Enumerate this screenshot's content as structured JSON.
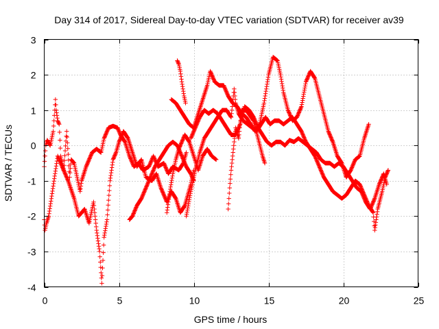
{
  "chart_data": {
    "type": "scatter",
    "title": "Day 314 of 2017, Sidereal Day-to-day VTEC variation (SDTVAR) for receiver av39",
    "xlabel": "GPS time / hours",
    "ylabel": "SDTVAR / TECUs",
    "xlim": [
      0,
      25
    ],
    "ylim": [
      -4,
      3
    ],
    "xticks": [
      "0",
      "5",
      "10",
      "15",
      "20",
      "25"
    ],
    "yticks": [
      "-4",
      "-3",
      "-2",
      "-1",
      "0",
      "1",
      "2",
      "3"
    ],
    "grid": true,
    "marker": "+",
    "color": "#ff0000",
    "series": [
      {
        "name": "track-1",
        "points": [
          [
            0.0,
            -0.6
          ],
          [
            0.1,
            0.0
          ],
          [
            0.2,
            0.15
          ],
          [
            0.4,
            0.0
          ],
          [
            0.6,
            0.4
          ],
          [
            0.75,
            1.3
          ],
          [
            0.8,
            1.0
          ],
          [
            0.9,
            0.7
          ],
          [
            1.0,
            0.6
          ],
          [
            1.1,
            -0.3
          ],
          [
            1.3,
            -0.7
          ],
          [
            1.5,
            0.4
          ],
          [
            1.7,
            -0.9
          ],
          [
            1.8,
            -0.4
          ],
          [
            2.0,
            -0.5
          ],
          [
            2.2,
            -0.9
          ],
          [
            2.4,
            -1.3
          ],
          [
            2.5,
            -1.0
          ],
          [
            2.8,
            -0.6
          ],
          [
            3.0,
            -0.4
          ],
          [
            3.2,
            -0.2
          ],
          [
            3.5,
            -0.1
          ],
          [
            3.8,
            -0.2
          ],
          [
            4.0,
            0.2
          ],
          [
            4.3,
            0.5
          ],
          [
            4.6,
            0.55
          ],
          [
            4.9,
            0.5
          ],
          [
            5.1,
            0.3
          ],
          [
            5.4,
            0.1
          ],
          [
            5.7,
            -0.3
          ],
          [
            6.0,
            -0.6
          ],
          [
            6.3,
            -0.5
          ],
          [
            6.6,
            -0.7
          ],
          [
            7.0,
            -0.6
          ],
          [
            7.3,
            -0.3
          ],
          [
            7.6,
            -0.6
          ],
          [
            8.0,
            -0.5
          ],
          [
            8.3,
            -0.8
          ],
          [
            8.6,
            -0.6
          ],
          [
            9.0,
            -0.7
          ],
          [
            9.3,
            -0.5
          ],
          [
            9.5,
            -0.2
          ]
        ]
      },
      {
        "name": "track-2",
        "points": [
          [
            0.0,
            -2.1
          ],
          [
            0.05,
            -2.4
          ],
          [
            0.15,
            -2.2
          ],
          [
            0.3,
            -2.0
          ],
          [
            0.9,
            -0.3
          ],
          [
            1.4,
            -0.8
          ],
          [
            1.6,
            -1.0
          ],
          [
            2.0,
            -1.5
          ],
          [
            2.3,
            -2.0
          ],
          [
            2.7,
            -1.8
          ],
          [
            3.0,
            -2.2
          ],
          [
            3.3,
            -1.6
          ],
          [
            3.5,
            -2.4
          ],
          [
            3.7,
            -3.0
          ],
          [
            3.8,
            -3.6
          ],
          [
            3.85,
            -3.9
          ],
          [
            4.0,
            -2.6
          ],
          [
            4.2,
            -2.1
          ],
          [
            4.4,
            -1.0
          ],
          [
            4.6,
            -0.4
          ],
          [
            4.8,
            -0.2
          ],
          [
            5.0,
            0.1
          ],
          [
            5.3,
            0.4
          ],
          [
            5.6,
            0.2
          ],
          [
            5.9,
            -0.2
          ],
          [
            6.2,
            -0.6
          ],
          [
            6.5,
            -0.4
          ],
          [
            6.8,
            -0.9
          ],
          [
            7.2,
            -1.0
          ],
          [
            7.5,
            -0.8
          ],
          [
            7.8,
            -1.2
          ],
          [
            8.2,
            -1.6
          ],
          [
            8.5,
            -1.3
          ],
          [
            8.8,
            -1.5
          ],
          [
            9.1,
            -1.9
          ],
          [
            9.4,
            -1.7
          ],
          [
            9.8,
            -1.1
          ],
          [
            10.0,
            -0.7
          ]
        ]
      },
      {
        "name": "track-3",
        "points": [
          [
            5.7,
            -2.1
          ],
          [
            5.9,
            -2.0
          ],
          [
            6.2,
            -1.7
          ],
          [
            6.5,
            -1.5
          ],
          [
            6.8,
            -1.2
          ],
          [
            7.1,
            -0.9
          ],
          [
            7.4,
            -0.6
          ],
          [
            7.7,
            -0.4
          ],
          [
            8.0,
            -0.2
          ],
          [
            8.3,
            0.0
          ],
          [
            8.6,
            0.1
          ],
          [
            8.9,
            0.0
          ],
          [
            9.2,
            -0.3
          ],
          [
            9.5,
            -0.6
          ],
          [
            9.8,
            -0.8
          ],
          [
            10.0,
            -1.0
          ]
        ]
      },
      {
        "name": "track-4",
        "points": [
          [
            8.9,
            2.4
          ],
          [
            9.0,
            2.3
          ],
          [
            9.1,
            2.1
          ],
          [
            9.2,
            1.8
          ],
          [
            9.35,
            1.4
          ],
          [
            9.45,
            1.2
          ]
        ]
      },
      {
        "name": "track-5",
        "points": [
          [
            8.5,
            1.3
          ],
          [
            8.8,
            1.2
          ],
          [
            9.1,
            1.0
          ],
          [
            9.4,
            0.8
          ],
          [
            9.7,
            0.6
          ],
          [
            10.0,
            0.5
          ],
          [
            10.3,
            0.9
          ],
          [
            10.6,
            1.3
          ],
          [
            10.9,
            1.7
          ],
          [
            11.1,
            2.1
          ],
          [
            11.4,
            1.8
          ],
          [
            11.7,
            1.7
          ],
          [
            12.0,
            1.7
          ],
          [
            12.3,
            1.4
          ],
          [
            12.6,
            1.2
          ],
          [
            12.9,
            1.1
          ],
          [
            13.2,
            0.9
          ],
          [
            13.5,
            0.8
          ],
          [
            13.8,
            0.6
          ],
          [
            14.1,
            0.4
          ],
          [
            14.4,
            0.6
          ],
          [
            14.7,
            1.2
          ],
          [
            15.0,
            2.0
          ],
          [
            15.3,
            2.5
          ],
          [
            15.6,
            2.4
          ],
          [
            15.8,
            2.0
          ],
          [
            16.0,
            1.5
          ],
          [
            16.3,
            1.0
          ],
          [
            16.6,
            0.7
          ],
          [
            16.9,
            0.8
          ],
          [
            17.2,
            1.1
          ],
          [
            17.5,
            1.8
          ],
          [
            17.8,
            2.1
          ],
          [
            18.1,
            1.9
          ],
          [
            18.4,
            1.4
          ],
          [
            18.7,
            0.9
          ],
          [
            19.0,
            0.4
          ],
          [
            19.3,
            0.1
          ],
          [
            19.6,
            -0.3
          ],
          [
            19.9,
            -0.5
          ],
          [
            20.2,
            -0.9
          ],
          [
            20.5,
            -0.7
          ],
          [
            20.8,
            -0.4
          ],
          [
            21.1,
            -0.3
          ],
          [
            21.4,
            0.2
          ],
          [
            21.7,
            0.6
          ]
        ]
      },
      {
        "name": "track-6",
        "points": [
          [
            9.8,
            0.2
          ],
          [
            10.1,
            0.5
          ],
          [
            10.4,
            0.8
          ],
          [
            10.7,
            1.0
          ],
          [
            11.0,
            0.9
          ],
          [
            11.3,
            1.0
          ],
          [
            11.6,
            0.9
          ],
          [
            11.9,
            0.7
          ],
          [
            12.2,
            0.5
          ],
          [
            12.5,
            0.3
          ],
          [
            12.8,
            0.3
          ],
          [
            13.1,
            0.6
          ],
          [
            13.4,
            1.1
          ],
          [
            13.7,
            1.0
          ],
          [
            14.0,
            0.8
          ],
          [
            14.3,
            0.5
          ],
          [
            14.6,
            0.3
          ],
          [
            14.9,
            0.1
          ],
          [
            15.2,
            0.0
          ],
          [
            15.5,
            0.1
          ],
          [
            15.8,
            0.1
          ],
          [
            16.1,
            0.0
          ],
          [
            16.4,
            0.15
          ],
          [
            16.7,
            0.1
          ],
          [
            17.0,
            0.2
          ],
          [
            17.3,
            0.1
          ],
          [
            17.6,
            0.0
          ],
          [
            17.9,
            -0.1
          ],
          [
            18.2,
            -0.2
          ],
          [
            18.5,
            -0.4
          ],
          [
            18.8,
            -0.5
          ],
          [
            19.1,
            -0.5
          ],
          [
            19.4,
            -0.6
          ],
          [
            19.7,
            -0.5
          ],
          [
            20.0,
            -0.6
          ],
          [
            20.3,
            -0.8
          ],
          [
            20.6,
            -1.0
          ],
          [
            20.9,
            -1.2
          ],
          [
            21.2,
            -1.3
          ],
          [
            21.5,
            -1.6
          ],
          [
            21.8,
            -1.8
          ],
          [
            22.1,
            -1.5
          ],
          [
            22.4,
            -1.1
          ],
          [
            22.7,
            -0.8
          ],
          [
            22.9,
            -1.1
          ]
        ]
      },
      {
        "name": "track-7",
        "points": [
          [
            9.5,
            -2.0
          ],
          [
            9.8,
            -1.3
          ],
          [
            10.1,
            -0.7
          ],
          [
            10.4,
            -0.2
          ],
          [
            10.7,
            0.2
          ],
          [
            11.0,
            0.4
          ],
          [
            11.3,
            0.6
          ],
          [
            11.6,
            0.8
          ],
          [
            11.9,
            1.0
          ],
          [
            12.2,
            1.0
          ],
          [
            12.5,
            0.8
          ],
          [
            12.7,
            1.6
          ],
          [
            12.8,
            1.2
          ],
          [
            13.0,
            0.9
          ],
          [
            13.3,
            0.7
          ],
          [
            13.6,
            0.6
          ],
          [
            13.9,
            0.5
          ],
          [
            14.2,
            0.4
          ],
          [
            14.5,
            0.6
          ],
          [
            14.8,
            0.8
          ],
          [
            15.1,
            0.6
          ],
          [
            15.4,
            0.7
          ],
          [
            15.7,
            0.7
          ],
          [
            16.0,
            0.6
          ],
          [
            16.3,
            0.7
          ],
          [
            16.6,
            0.8
          ],
          [
            16.9,
            0.6
          ],
          [
            17.2,
            0.4
          ],
          [
            17.5,
            0.1
          ],
          [
            17.8,
            -0.1
          ],
          [
            18.1,
            -0.3
          ],
          [
            18.4,
            -0.6
          ],
          [
            18.7,
            -0.9
          ],
          [
            19.0,
            -1.1
          ],
          [
            19.3,
            -1.3
          ],
          [
            19.6,
            -1.4
          ],
          [
            19.9,
            -1.5
          ],
          [
            20.2,
            -1.4
          ],
          [
            20.5,
            -1.2
          ],
          [
            20.8,
            -1.0
          ],
          [
            21.1,
            -1.1
          ],
          [
            21.4,
            -1.4
          ],
          [
            21.7,
            -1.7
          ],
          [
            22.0,
            -1.9
          ],
          [
            22.1,
            -2.4
          ],
          [
            22.3,
            -1.8
          ],
          [
            22.6,
            -1.3
          ],
          [
            22.8,
            -0.9
          ],
          [
            23.0,
            -0.7
          ]
        ]
      },
      {
        "name": "track-8",
        "points": [
          [
            12.3,
            -1.8
          ],
          [
            12.4,
            -1.2
          ],
          [
            12.5,
            -0.7
          ],
          [
            12.6,
            -0.3
          ],
          [
            12.8,
            0.5
          ],
          [
            13.0,
            0.2
          ],
          [
            13.2,
            1.0
          ],
          [
            13.5,
            1.0
          ],
          [
            14.0,
            0.7
          ],
          [
            14.3,
            0.2
          ],
          [
            14.6,
            -0.3
          ],
          [
            14.75,
            -0.5
          ]
        ]
      },
      {
        "name": "track-9",
        "points": [
          [
            8.2,
            -1.9
          ],
          [
            8.4,
            -1.3
          ],
          [
            8.6,
            -0.8
          ],
          [
            8.8,
            -0.4
          ],
          [
            9.0,
            -0.1
          ],
          [
            9.2,
            0.1
          ],
          [
            9.4,
            0.3
          ],
          [
            9.7,
            0.1
          ],
          [
            10.0,
            -0.3
          ],
          [
            10.3,
            -0.7
          ],
          [
            10.6,
            -0.3
          ],
          [
            10.9,
            -0.1
          ],
          [
            11.2,
            -0.3
          ],
          [
            11.5,
            -0.4
          ]
        ]
      }
    ]
  }
}
